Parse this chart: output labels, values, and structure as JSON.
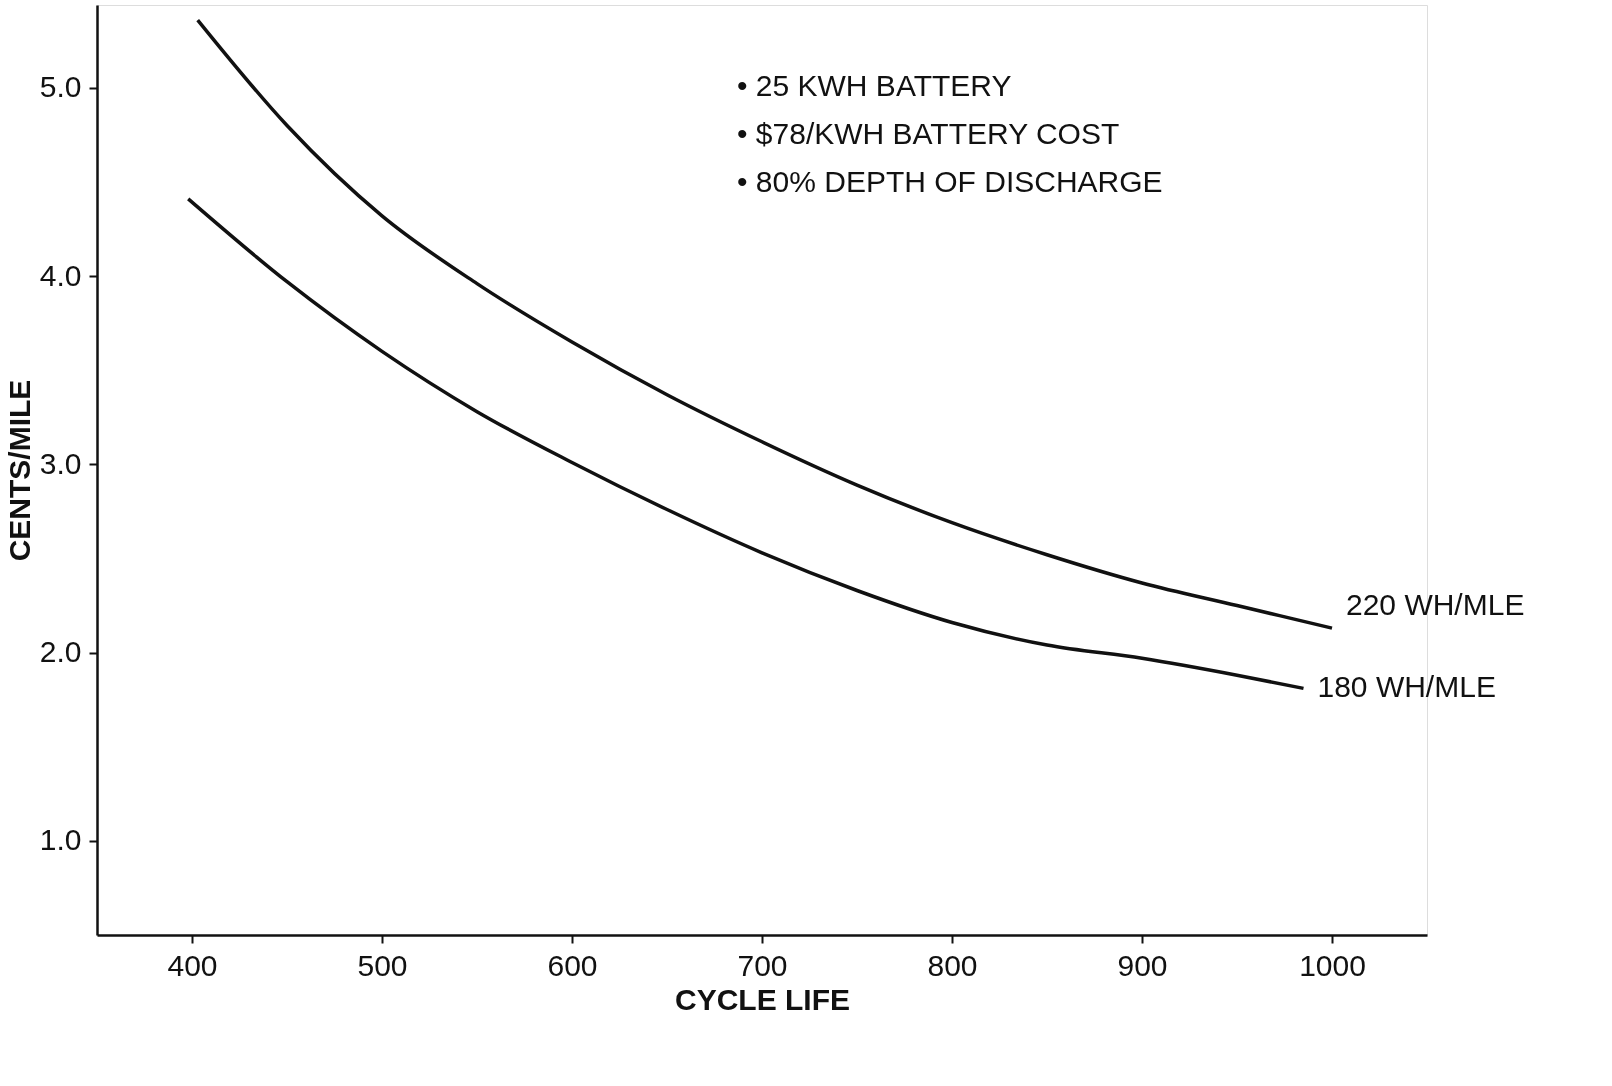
{
  "chart_data": {
    "type": "line",
    "xlabel": "CYCLE LIFE",
    "ylabel": "CENTS/MILE",
    "xlim": [
      350,
      1050
    ],
    "ylim": [
      0.5,
      5.44
    ],
    "xticks": [
      400,
      500,
      600,
      700,
      800,
      900,
      1000
    ],
    "yticks": [
      {
        "value": 1,
        "label": "1.0"
      },
      {
        "value": 2,
        "label": "2.0"
      },
      {
        "value": 3,
        "label": "3.0"
      },
      {
        "value": 4,
        "label": "4.0"
      },
      {
        "value": 5,
        "label": "5.0"
      }
    ],
    "grid": false,
    "legend": false,
    "marker": "none",
    "line_style": "solid",
    "annotations": [
      "• 25 KWH BATTERY",
      "• $78/KWH BATTERY COST",
      "• 80% DEPTH OF DISCHARGE"
    ],
    "series": [
      {
        "name": "220 WH/MLE",
        "color": "#111111",
        "x": [
          403,
          450,
          500,
          550,
          600,
          650,
          700,
          750,
          800,
          850,
          900,
          950,
          1000
        ],
        "values": [
          5.36,
          4.8,
          4.32,
          3.96,
          3.65,
          3.37,
          3.12,
          2.89,
          2.69,
          2.52,
          2.37,
          2.25,
          2.13
        ]
      },
      {
        "name": "180 WH/MLE",
        "color": "#111111",
        "x": [
          398,
          450,
          500,
          550,
          600,
          650,
          700,
          750,
          800,
          850,
          900,
          950,
          985
        ],
        "values": [
          4.41,
          3.97,
          3.6,
          3.28,
          3.01,
          2.76,
          2.53,
          2.33,
          2.16,
          2.04,
          1.97,
          1.88,
          1.81
        ]
      }
    ]
  }
}
